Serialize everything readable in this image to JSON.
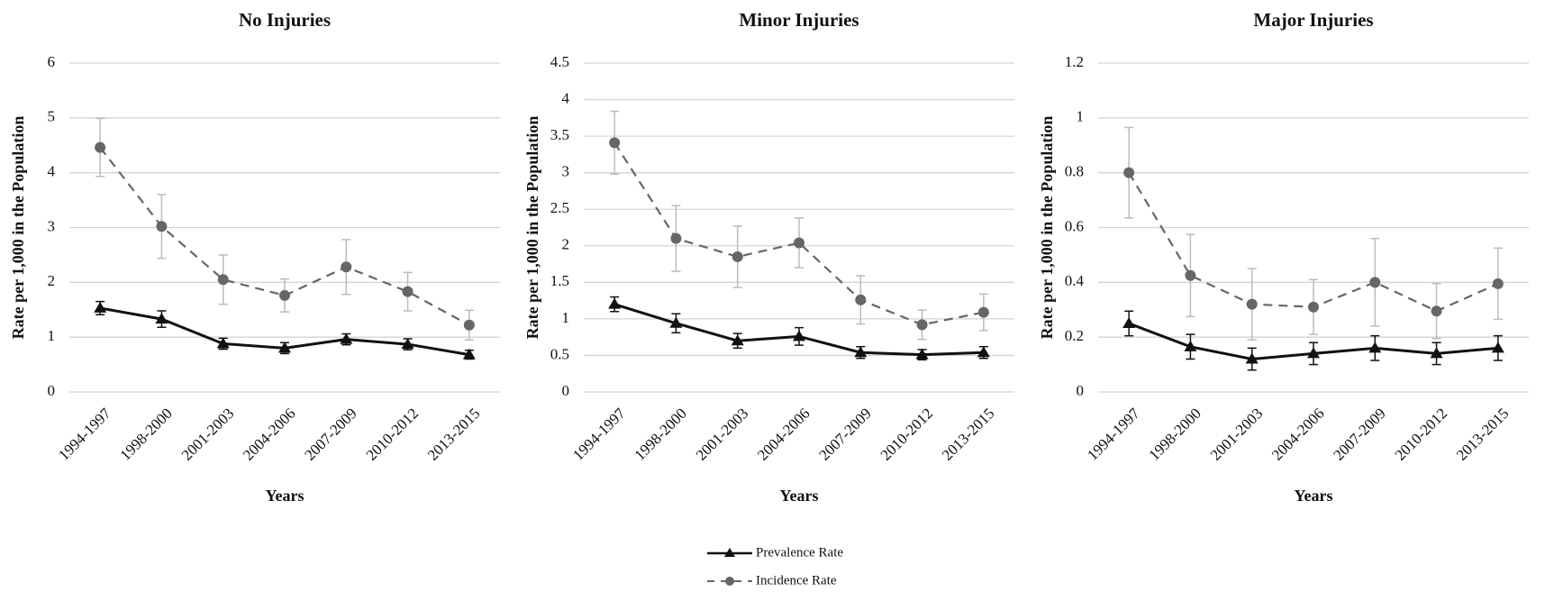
{
  "chart_data": [
    {
      "type": "line",
      "title": "No Injuries",
      "x_label": "Years",
      "y_label": "Rate per 1,000 in the Population",
      "categories": [
        "1994-1997",
        "1998-2000",
        "2001-2003",
        "2004-2006",
        "2007-2009",
        "2010-2012",
        "2013-2015"
      ],
      "ylim": [
        0,
        6
      ],
      "yticks": [
        0,
        1,
        2,
        3,
        4,
        5,
        6
      ],
      "grid": true,
      "series": [
        {
          "color": "#111111",
          "marker": "triangle",
          "dashed": false,
          "error_color": "#111111",
          "values": [
            1.53,
            1.33,
            0.88,
            0.8,
            0.96,
            0.87,
            0.68
          ],
          "errors": [
            0.12,
            0.15,
            0.1,
            0.1,
            0.1,
            0.1,
            0.08
          ]
        },
        {
          "color": "#666666",
          "marker": "circle",
          "dashed": true,
          "error_color": "#bbbbbb",
          "values": [
            4.46,
            3.02,
            2.05,
            1.76,
            2.28,
            1.83,
            1.22
          ],
          "errors": [
            0.53,
            0.58,
            0.45,
            0.3,
            0.5,
            0.35,
            0.27
          ]
        }
      ]
    },
    {
      "type": "line",
      "title": "Minor Injuries",
      "x_label": "Years",
      "y_label": "Rate per 1,000 in the Population",
      "categories": [
        "1994-1997",
        "1998-2000",
        "2001-2003",
        "2004-2006",
        "2007-2009",
        "2010-2012",
        "2013-2015"
      ],
      "ylim": [
        0,
        4.5
      ],
      "yticks": [
        0,
        0.5,
        1,
        1.5,
        2,
        2.5,
        3,
        3.5,
        4,
        4.5
      ],
      "grid": true,
      "series": [
        {
          "name": "Prevalence Rate",
          "color": "#111111",
          "marker": "triangle",
          "dashed": false,
          "error_color": "#111111",
          "values": [
            1.2,
            0.94,
            0.7,
            0.76,
            0.54,
            0.51,
            0.54
          ],
          "errors": [
            0.1,
            0.13,
            0.1,
            0.12,
            0.08,
            0.07,
            0.08
          ]
        },
        {
          "name": "Incidence Rate",
          "color": "#666666",
          "marker": "circle",
          "dashed": true,
          "error_color": "#bbbbbb",
          "values": [
            3.41,
            2.1,
            1.85,
            2.04,
            1.26,
            0.92,
            1.09
          ],
          "errors": [
            0.43,
            0.45,
            0.42,
            0.34,
            0.33,
            0.2,
            0.25
          ]
        }
      ]
    },
    {
      "type": "line",
      "title": "Major Injuries",
      "x_label": "Years",
      "y_label": "Rate per 1,000 in the Population",
      "categories": [
        "1994-1997",
        "1998-2000",
        "2001-2003",
        "2004-2006",
        "2007-2009",
        "2010-2012",
        "2013-2015"
      ],
      "ylim": [
        0,
        1.2
      ],
      "yticks": [
        0,
        0.2,
        0.4,
        0.6,
        0.8,
        1,
        1.2
      ],
      "grid": true,
      "series": [
        {
          "color": "#111111",
          "marker": "triangle",
          "dashed": false,
          "error_color": "#111111",
          "values": [
            0.25,
            0.165,
            0.12,
            0.14,
            0.16,
            0.14,
            0.16
          ],
          "errors": [
            0.045,
            0.045,
            0.04,
            0.04,
            0.045,
            0.04,
            0.045
          ]
        },
        {
          "color": "#666666",
          "marker": "circle",
          "dashed": true,
          "error_color": "#bbbbbb",
          "values": [
            0.8,
            0.425,
            0.32,
            0.31,
            0.4,
            0.295,
            0.395
          ],
          "errors": [
            0.165,
            0.15,
            0.13,
            0.1,
            0.16,
            0.1,
            0.13
          ]
        }
      ]
    }
  ]
}
